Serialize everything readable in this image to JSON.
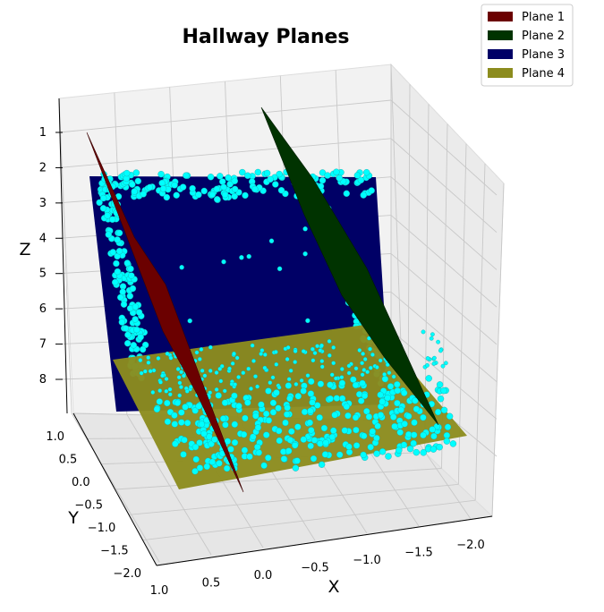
{
  "chart_data": {
    "type": "scatter",
    "projection": "3d",
    "title": "Hallway Planes",
    "xlabel": "X",
    "ylabel": "Y",
    "zlabel": "Z",
    "x_ticks": [
      "1.0",
      "0.5",
      "0.0",
      "−0.5",
      "−1.0",
      "−1.5",
      "−2.0"
    ],
    "y_ticks": [
      "1.0",
      "0.5",
      "0.0",
      "−0.5",
      "−1.0",
      "−1.5",
      "−2.0"
    ],
    "z_ticks": [
      "1",
      "2",
      "3",
      "4",
      "5",
      "6",
      "7",
      "8"
    ],
    "xlim": [
      1.0,
      -2.0
    ],
    "ylim": [
      1.0,
      -2.0
    ],
    "zlim": [
      1,
      8
    ],
    "z_axis_inverted": true,
    "grid": true,
    "legend_position": "top-right",
    "legend": [
      {
        "name": "Plane 1",
        "color": "#6b0000"
      },
      {
        "name": "Plane 2",
        "color": "#003300"
      },
      {
        "name": "Plane 3",
        "color": "#000066"
      },
      {
        "name": "Plane 4",
        "color": "#8c8c1e"
      }
    ],
    "point_color": "#00ffff",
    "series": [
      {
        "name": "Plane 1",
        "kind": "surface",
        "color": "#6b0000"
      },
      {
        "name": "Plane 2",
        "kind": "surface",
        "color": "#003300"
      },
      {
        "name": "Plane 3",
        "kind": "surface",
        "color": "#000066"
      },
      {
        "name": "Plane 4",
        "kind": "surface",
        "color": "#8c8c1e"
      },
      {
        "kind": "point_cloud",
        "color": "#00ffff"
      }
    ]
  }
}
